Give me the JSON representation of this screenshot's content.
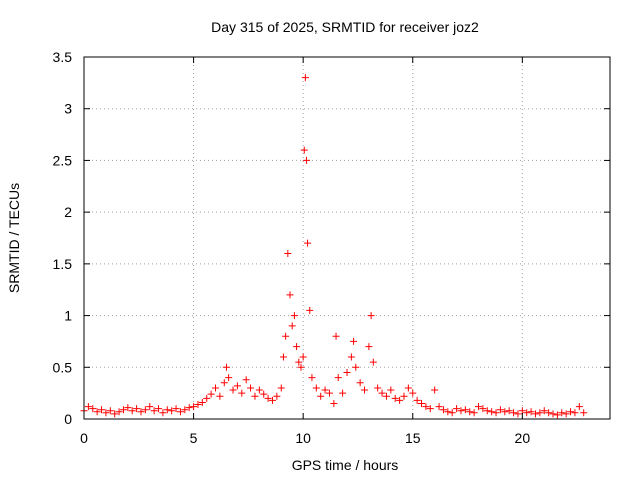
{
  "chart_data": {
    "type": "scatter",
    "title": "Day 315 of 2025, SRMTID for receiver joz2",
    "xlabel": "GPS time / hours",
    "ylabel": "SRMTID / TECUs",
    "xlim": [
      0,
      24
    ],
    "ylim": [
      0,
      3.5
    ],
    "xticks": [
      0,
      5,
      10,
      15,
      20
    ],
    "xtick_labels": [
      "0",
      "5",
      "10",
      "15",
      "20"
    ],
    "yticks": [
      0,
      0.5,
      1,
      1.5,
      2,
      2.5,
      3,
      3.5
    ],
    "ytick_labels": [
      "0",
      "0.5",
      "1",
      "1.5",
      "2",
      "2.5",
      "3",
      "3.5"
    ],
    "grid": true,
    "marker": "+",
    "color": "#ff0000",
    "series": [
      {
        "name": "SRMTID",
        "x": [
          0.0,
          0.2,
          0.4,
          0.6,
          0.8,
          1.0,
          1.2,
          1.4,
          1.6,
          1.8,
          2.0,
          2.2,
          2.4,
          2.6,
          2.8,
          3.0,
          3.2,
          3.4,
          3.6,
          3.8,
          4.0,
          4.2,
          4.4,
          4.6,
          4.8,
          5.0,
          5.2,
          5.4,
          5.6,
          5.8,
          6.0,
          6.2,
          6.4,
          6.5,
          6.6,
          6.8,
          7.0,
          7.2,
          7.4,
          7.6,
          7.8,
          8.0,
          8.2,
          8.4,
          8.6,
          8.8,
          9.0,
          9.1,
          9.2,
          9.3,
          9.4,
          9.5,
          9.6,
          9.7,
          9.8,
          9.9,
          10.0,
          10.05,
          10.1,
          10.15,
          10.2,
          10.3,
          10.4,
          10.6,
          10.8,
          11.0,
          11.2,
          11.4,
          11.5,
          11.6,
          11.8,
          12.0,
          12.2,
          12.3,
          12.4,
          12.6,
          12.8,
          13.0,
          13.1,
          13.2,
          13.4,
          13.6,
          13.8,
          14.0,
          14.2,
          14.4,
          14.6,
          14.8,
          15.0,
          15.2,
          15.4,
          15.6,
          15.8,
          16.0,
          16.2,
          16.4,
          16.6,
          16.8,
          17.0,
          17.2,
          17.4,
          17.6,
          17.8,
          18.0,
          18.2,
          18.4,
          18.6,
          18.8,
          19.0,
          19.2,
          19.4,
          19.6,
          19.8,
          20.0,
          20.2,
          20.4,
          20.6,
          20.8,
          21.0,
          21.2,
          21.4,
          21.6,
          21.8,
          22.0,
          22.2,
          22.4,
          22.6,
          22.8
        ],
        "y": [
          0.08,
          0.12,
          0.1,
          0.07,
          0.09,
          0.06,
          0.08,
          0.05,
          0.07,
          0.09,
          0.11,
          0.08,
          0.1,
          0.07,
          0.09,
          0.12,
          0.08,
          0.1,
          0.06,
          0.09,
          0.08,
          0.1,
          0.07,
          0.09,
          0.11,
          0.12,
          0.14,
          0.16,
          0.2,
          0.24,
          0.3,
          0.22,
          0.35,
          0.5,
          0.4,
          0.28,
          0.32,
          0.25,
          0.38,
          0.3,
          0.22,
          0.28,
          0.24,
          0.2,
          0.18,
          0.22,
          0.3,
          0.6,
          0.8,
          1.6,
          1.2,
          0.9,
          1.0,
          0.7,
          0.55,
          0.5,
          0.6,
          2.6,
          3.3,
          2.5,
          1.7,
          1.05,
          0.4,
          0.3,
          0.22,
          0.28,
          0.25,
          0.15,
          0.8,
          0.4,
          0.25,
          0.45,
          0.6,
          0.75,
          0.5,
          0.35,
          0.28,
          0.7,
          1.0,
          0.55,
          0.3,
          0.25,
          0.22,
          0.28,
          0.2,
          0.18,
          0.22,
          0.3,
          0.25,
          0.18,
          0.15,
          0.12,
          0.1,
          0.28,
          0.12,
          0.09,
          0.07,
          0.06,
          0.1,
          0.08,
          0.09,
          0.07,
          0.06,
          0.12,
          0.1,
          0.08,
          0.07,
          0.06,
          0.09,
          0.07,
          0.08,
          0.06,
          0.05,
          0.08,
          0.06,
          0.07,
          0.05,
          0.06,
          0.08,
          0.06,
          0.05,
          0.04,
          0.06,
          0.05,
          0.07,
          0.06,
          0.12,
          0.06
        ]
      }
    ]
  }
}
